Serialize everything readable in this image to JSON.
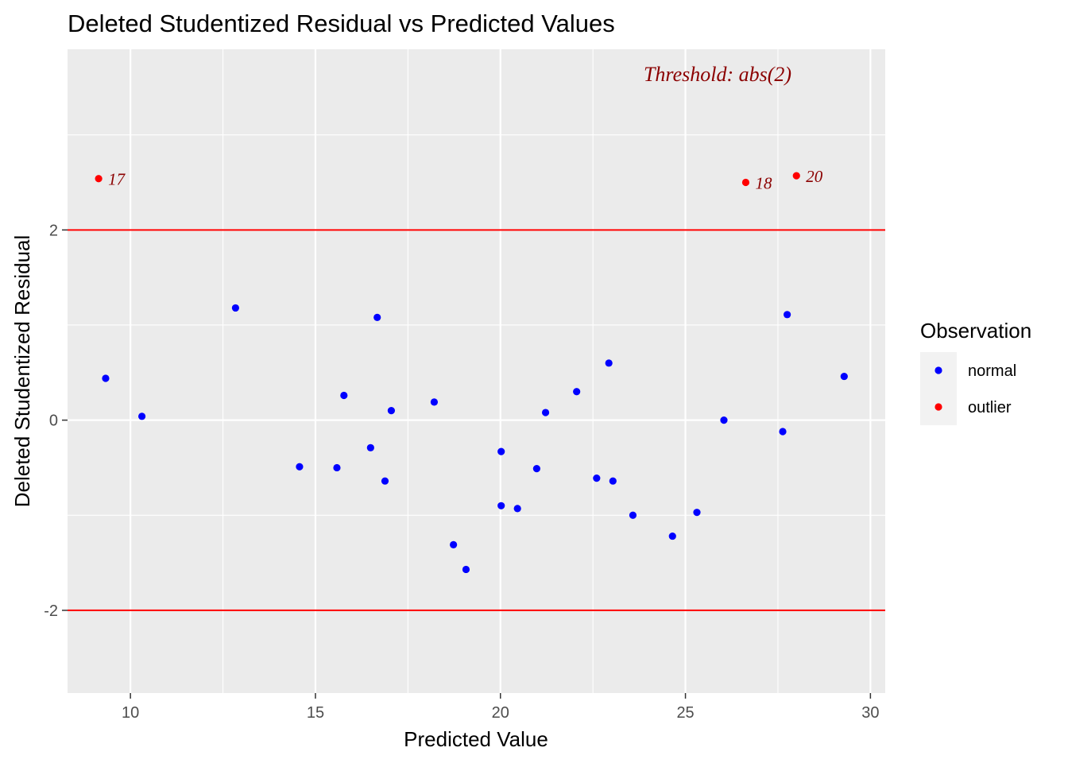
{
  "chart_data": {
    "type": "scatter",
    "title": "Deleted Studentized Residual vs Predicted Values",
    "xlabel": "Predicted Value",
    "ylabel": "Deleted Studentized Residual",
    "xlim": [
      8.3,
      30.4
    ],
    "ylim": [
      -2.87,
      3.9
    ],
    "x_ticks": [
      10,
      15,
      20,
      25,
      30
    ],
    "y_ticks": [
      -2,
      0,
      2
    ],
    "grid": true,
    "threshold": 2,
    "annotation": "Threshold: abs(2)",
    "legend": {
      "title": "Observation",
      "placement": "right",
      "entries": [
        {
          "name": "normal",
          "color": "#0000ff"
        },
        {
          "name": "outlier",
          "color": "#ff0000"
        }
      ]
    },
    "colors": {
      "normal": "#0000ff",
      "outlier": "#ff0000",
      "threshold_line": "#ff0000",
      "label_text": "#8b0000",
      "panel": "#ebebeb"
    },
    "series": [
      {
        "name": "normal",
        "points": [
          {
            "x": 9.33,
            "y": 0.44
          },
          {
            "x": 10.31,
            "y": 0.04
          },
          {
            "x": 12.84,
            "y": 1.18
          },
          {
            "x": 14.57,
            "y": -0.49
          },
          {
            "x": 15.58,
            "y": -0.5
          },
          {
            "x": 15.77,
            "y": 0.26
          },
          {
            "x": 16.49,
            "y": -0.29
          },
          {
            "x": 16.67,
            "y": 1.08
          },
          {
            "x": 16.88,
            "y": -0.64
          },
          {
            "x": 17.05,
            "y": 0.1
          },
          {
            "x": 18.21,
            "y": 0.19
          },
          {
            "x": 18.73,
            "y": -1.31
          },
          {
            "x": 19.07,
            "y": -1.57
          },
          {
            "x": 20.02,
            "y": -0.33
          },
          {
            "x": 20.02,
            "y": -0.9
          },
          {
            "x": 20.46,
            "y": -0.93
          },
          {
            "x": 20.98,
            "y": -0.51
          },
          {
            "x": 21.22,
            "y": 0.08
          },
          {
            "x": 22.06,
            "y": 0.3
          },
          {
            "x": 22.6,
            "y": -0.61
          },
          {
            "x": 22.93,
            "y": 0.6
          },
          {
            "x": 23.04,
            "y": -0.64
          },
          {
            "x": 23.58,
            "y": -1.0
          },
          {
            "x": 24.65,
            "y": -1.22
          },
          {
            "x": 25.31,
            "y": -0.97
          },
          {
            "x": 26.04,
            "y": 0.0
          },
          {
            "x": 27.63,
            "y": -0.12
          },
          {
            "x": 27.75,
            "y": 1.11
          },
          {
            "x": 29.29,
            "y": 0.46
          }
        ]
      },
      {
        "name": "outlier",
        "points": [
          {
            "x": 9.14,
            "y": 2.54,
            "label": "17"
          },
          {
            "x": 26.63,
            "y": 2.5,
            "label": "18"
          },
          {
            "x": 28.0,
            "y": 2.57,
            "label": "20"
          }
        ]
      }
    ]
  }
}
